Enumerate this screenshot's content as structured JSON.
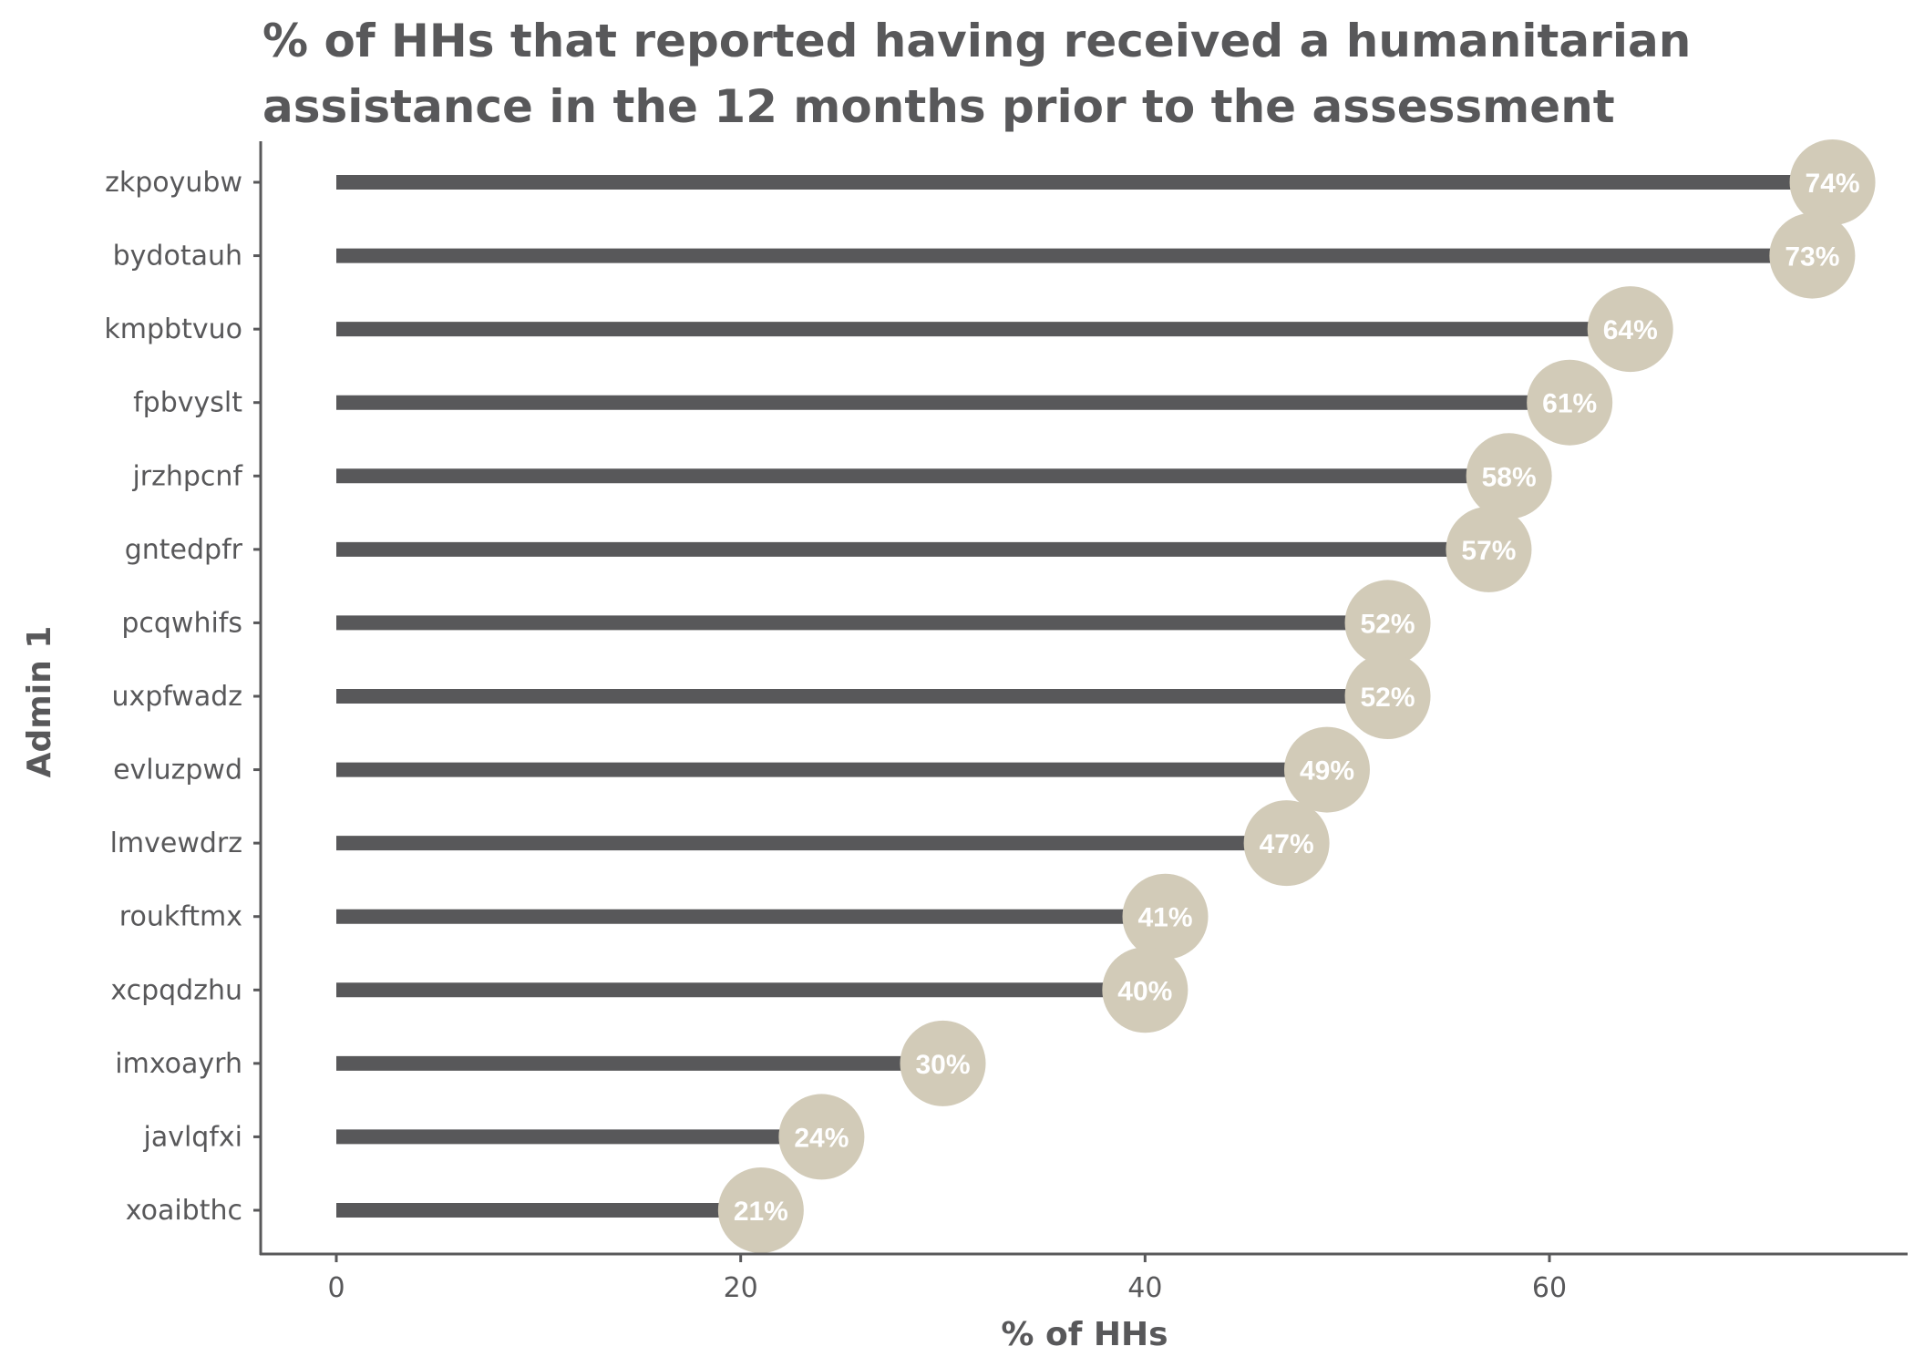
{
  "chart_data": {
    "type": "lollipop",
    "title_lines": [
      "% of HHs that reported having received a humanitarian",
      "assistance in the 12 months prior to the assessment"
    ],
    "xlabel": "% of HHs",
    "ylabel": "Admin 1",
    "xlim": [
      -3.7,
      77
    ],
    "xticks": [
      0,
      20,
      40,
      60
    ],
    "xtick_labels": [
      "0",
      "20",
      "40",
      "60"
    ],
    "grid": false,
    "categories": [
      "zkpoyubw",
      "bydotauh",
      "kmpbtvuo",
      "fpbvyslt",
      "jrzhpcnf",
      "gntedpfr",
      "pcqwhifs",
      "uxpfwadz",
      "evluzpwd",
      "lmvewdrz",
      "roukftmx",
      "xcpqdzhu",
      "imxoayrh",
      "javlqfxi",
      "xoaibthc"
    ],
    "values": [
      74,
      73,
      64,
      61,
      58,
      57,
      52,
      52,
      49,
      47,
      41,
      40,
      30,
      24,
      21
    ],
    "data_labels": [
      "74%",
      "73%",
      "64%",
      "61%",
      "58%",
      "57%",
      "52%",
      "52%",
      "49%",
      "47%",
      "41%",
      "40%",
      "30%",
      "24%",
      "21%"
    ],
    "colors": {
      "bar": "#58585a",
      "point": "#d2cbb8",
      "text": "#58585a",
      "label": "#ffffff"
    }
  }
}
